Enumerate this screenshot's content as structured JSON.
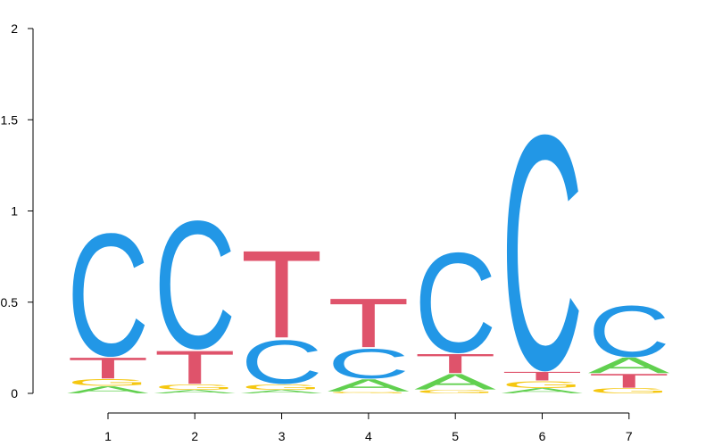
{
  "chart_data": {
    "type": "sequence-logo",
    "title": "",
    "xlabel": "",
    "ylabel": "",
    "ylim": [
      0,
      2
    ],
    "y_ticks": [
      "0",
      "0.5",
      "1",
      "1.5",
      "2"
    ],
    "y_tick_values": [
      0,
      0.5,
      1,
      1.5,
      2
    ],
    "positions": [
      "1",
      "2",
      "3",
      "4",
      "5",
      "6",
      "7"
    ],
    "letter_colors": {
      "A": "#61D04F",
      "C": "#2297E6",
      "G": "#F5C710",
      "T": "#DF536B"
    },
    "stacks": [
      [
        {
          "letter": "A",
          "height": 0.04
        },
        {
          "letter": "G",
          "height": 0.04
        },
        {
          "letter": "T",
          "height": 0.12
        },
        {
          "letter": "C",
          "height": 0.7
        }
      ],
      [
        {
          "letter": "A",
          "height": 0.02
        },
        {
          "letter": "G",
          "height": 0.03
        },
        {
          "letter": "T",
          "height": 0.19
        },
        {
          "letter": "C",
          "height": 0.73
        }
      ],
      [
        {
          "letter": "A",
          "height": 0.02
        },
        {
          "letter": "G",
          "height": 0.03
        },
        {
          "letter": "C",
          "height": 0.25
        },
        {
          "letter": "T",
          "height": 0.5
        }
      ],
      [
        {
          "letter": "G",
          "height": 0.01
        },
        {
          "letter": "A",
          "height": 0.07
        },
        {
          "letter": "C",
          "height": 0.17
        },
        {
          "letter": "T",
          "height": 0.28
        }
      ],
      [
        {
          "letter": "G",
          "height": 0.02
        },
        {
          "letter": "A",
          "height": 0.09
        },
        {
          "letter": "T",
          "height": 0.11
        },
        {
          "letter": "C",
          "height": 0.57
        }
      ],
      [
        {
          "letter": "A",
          "height": 0.03
        },
        {
          "letter": "G",
          "height": 0.04
        },
        {
          "letter": "T",
          "height": 0.05
        },
        {
          "letter": "C",
          "height": 1.34
        }
      ],
      [
        {
          "letter": "G",
          "height": 0.03
        },
        {
          "letter": "T",
          "height": 0.08
        },
        {
          "letter": "A",
          "height": 0.09
        },
        {
          "letter": "C",
          "height": 0.29
        }
      ]
    ]
  }
}
